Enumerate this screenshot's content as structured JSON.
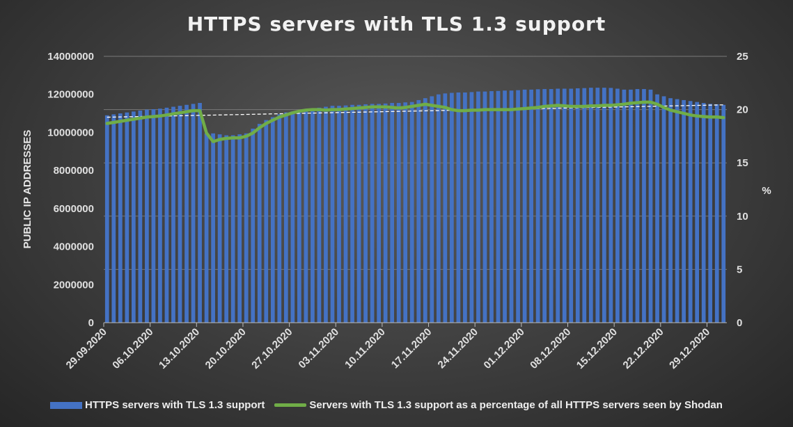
{
  "chart_data": {
    "type": "bar",
    "title": "HTTPS servers with TLS 1.3 support",
    "ylabel": "PUBLIC IP ADDRESSES",
    "y2label": "%",
    "ylim": [
      0,
      14000000
    ],
    "y2lim": [
      0,
      25
    ],
    "yticks": [
      "0",
      "2000000",
      "4000000",
      "6000000",
      "8000000",
      "10000000",
      "12000000",
      "14000000"
    ],
    "y2ticks": [
      "0",
      "5",
      "10",
      "15",
      "20",
      "25"
    ],
    "xticks": [
      "29.09.2020",
      "06.10.2020",
      "13.10.2020",
      "20.10.2020",
      "27.10.2020",
      "03.11.2020",
      "10.11.2020",
      "17.11.2020",
      "24.11.2020",
      "01.12.2020",
      "08.12.2020",
      "15.12.2020",
      "22.12.2020",
      "29.12.2020"
    ],
    "x_start": "29.09.2020",
    "x_end": "31.12.2020",
    "grid": true,
    "legend_position": "bottom",
    "series": [
      {
        "name": "HTTPS servers with TLS 1.3 support",
        "type": "bar",
        "color": "#4472c4",
        "values": [
          10900000,
          10950000,
          11000000,
          11050000,
          11100000,
          11150000,
          11200000,
          11220000,
          11250000,
          11300000,
          11350000,
          11400000,
          11450000,
          11500000,
          11550000,
          9950000,
          9950000,
          9900000,
          9850000,
          9850000,
          9900000,
          9950000,
          10200000,
          10450000,
          10650000,
          10800000,
          10950000,
          11050000,
          11100000,
          11150000,
          11200000,
          11250000,
          11300000,
          11350000,
          11400000,
          11400000,
          11420000,
          11450000,
          11450000,
          11480000,
          11500000,
          11500000,
          11520000,
          11550000,
          11550000,
          11580000,
          11600000,
          11700000,
          11800000,
          11900000,
          12000000,
          12050000,
          12080000,
          12100000,
          12100000,
          12120000,
          12150000,
          12150000,
          12170000,
          12180000,
          12200000,
          12200000,
          12220000,
          12250000,
          12250000,
          12270000,
          12280000,
          12280000,
          12300000,
          12300000,
          12300000,
          12320000,
          12330000,
          12350000,
          12350000,
          12350000,
          12340000,
          12300000,
          12250000,
          12250000,
          12280000,
          12280000,
          12250000,
          12000000,
          11900000,
          11800000,
          11750000,
          11700000,
          11650000,
          11600000,
          11550000,
          11500000,
          11480000,
          11450000
        ],
        "trendline": [
          10800000,
          11450000
        ]
      },
      {
        "name": "Servers with TLS 1.3 support as a percentage of all HTTPS servers seen by Shodan",
        "type": "line",
        "axis": "right",
        "color": "#70ad47",
        "values": [
          18.7,
          18.8,
          18.9,
          19.0,
          19.1,
          19.2,
          19.3,
          19.35,
          19.4,
          19.5,
          19.6,
          19.7,
          19.8,
          19.9,
          19.9,
          17.8,
          17.0,
          17.2,
          17.3,
          17.35,
          17.35,
          17.5,
          17.8,
          18.3,
          18.7,
          19.0,
          19.3,
          19.5,
          19.7,
          19.85,
          19.95,
          20.0,
          20.0,
          19.95,
          20.0,
          20.0,
          20.05,
          20.1,
          20.15,
          20.2,
          20.25,
          20.25,
          20.25,
          20.2,
          20.15,
          20.2,
          20.3,
          20.4,
          20.5,
          20.4,
          20.3,
          20.2,
          20.0,
          19.9,
          19.9,
          19.95,
          19.95,
          20.0,
          20.0,
          20.0,
          20.0,
          20.0,
          20.05,
          20.1,
          20.15,
          20.2,
          20.3,
          20.35,
          20.4,
          20.35,
          20.3,
          20.3,
          20.3,
          20.35,
          20.35,
          20.4,
          20.4,
          20.45,
          20.5,
          20.6,
          20.65,
          20.7,
          20.7,
          20.5,
          20.2,
          19.95,
          19.8,
          19.65,
          19.5,
          19.4,
          19.35,
          19.3,
          19.3,
          19.25
        ]
      }
    ]
  }
}
